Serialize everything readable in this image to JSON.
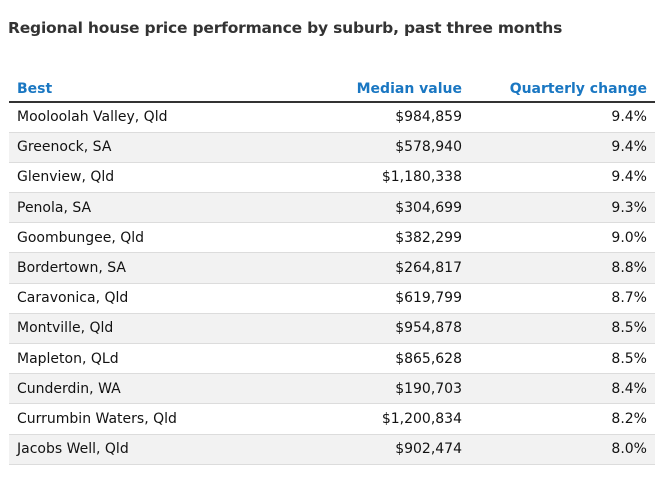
{
  "chart_data": {
    "type": "table",
    "title": "Regional house price performance by suburb, past three months",
    "columns": [
      "Best",
      "Median value",
      "Quarterly change"
    ],
    "rows": [
      [
        "Mooloolah Valley, Qld",
        "$984,859",
        "9.4%"
      ],
      [
        "Greenock, SA",
        "$578,940",
        "9.4%"
      ],
      [
        "Glenview, Qld",
        "$1,180,338",
        "9.4%"
      ],
      [
        "Penola, SA",
        "$304,699",
        "9.3%"
      ],
      [
        "Goombungee, Qld",
        "$382,299",
        "9.0%"
      ],
      [
        "Bordertown, SA",
        "$264,817",
        "8.8%"
      ],
      [
        "Caravonica, Qld",
        "$619,799",
        "8.7%"
      ],
      [
        "Montville, Qld",
        "$954,878",
        "8.5%"
      ],
      [
        "Mapleton, QLd",
        "$865,628",
        "8.5%"
      ],
      [
        "Cunderdin, WA",
        "$190,703",
        "8.4%"
      ],
      [
        "Currumbin Waters, Qld",
        "$1,200,834",
        "8.2%"
      ],
      [
        "Jacobs Well, Qld",
        "$902,474",
        "8.0%"
      ]
    ]
  },
  "colors": {
    "header_text": "#1a77c2",
    "stripe": "#f2f2f2",
    "title_text": "#333333"
  }
}
